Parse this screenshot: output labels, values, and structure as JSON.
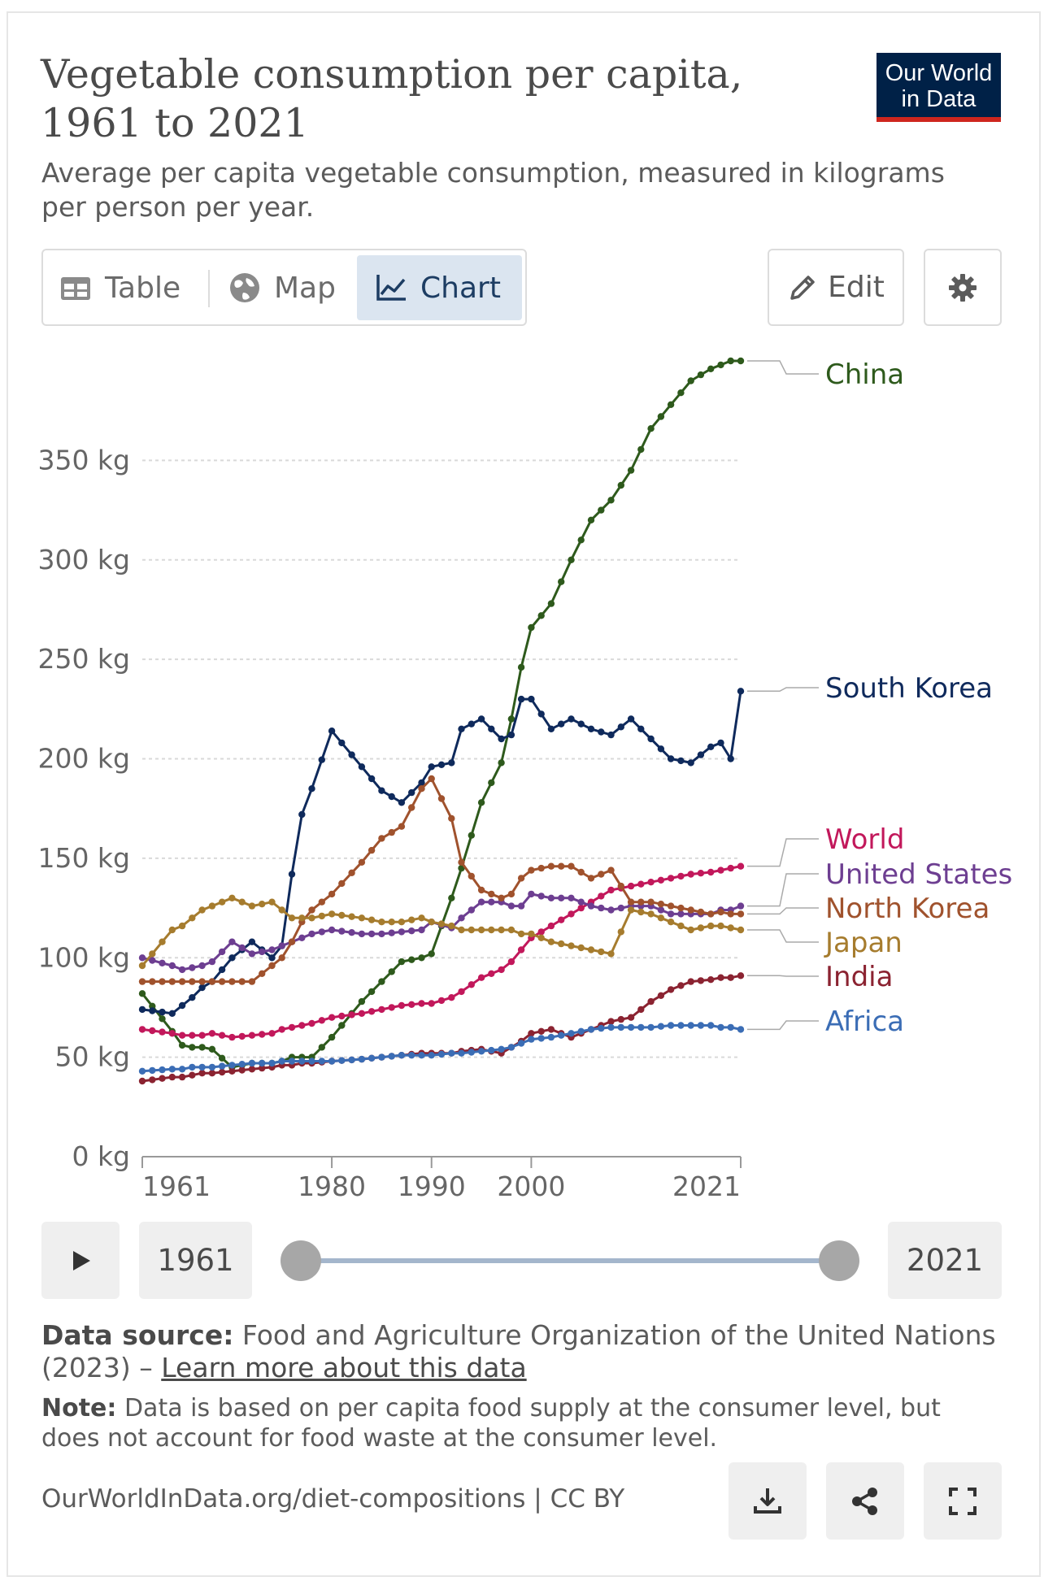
{
  "header": {
    "title": "Vegetable consumption per capita, 1961 to 2021",
    "subtitle": "Average per capita vegetable consumption, measured in kilograms per person per year.",
    "logo_line1": "Our World",
    "logo_line2": "in Data"
  },
  "tabs": [
    {
      "label": "Table",
      "icon": "table-icon"
    },
    {
      "label": "Map",
      "icon": "globe-icon"
    },
    {
      "label": "Chart",
      "icon": "line-chart-icon",
      "active": true
    }
  ],
  "toolbar": {
    "edit_label": "Edit",
    "settings_icon": "gear-icon"
  },
  "timeline": {
    "start_year": "1961",
    "end_year": "2021",
    "play_icon": "play-icon"
  },
  "footer": {
    "source_label": "Data source:",
    "source_text": "Food and Agriculture Organization of the United Nations (2023) –",
    "source_link": "Learn more about this data",
    "note_label": "Note:",
    "note_text": "Data is based on per capita food supply at the consumer level, but does not account for food waste at the consumer level.",
    "url": "OurWorldInData.org/diet-compositions | CC BY",
    "buttons": [
      "download-icon",
      "share-icon",
      "fullscreen-icon"
    ]
  },
  "chart_data": {
    "type": "line",
    "title": "Vegetable consumption per capita, 1961 to 2021",
    "xlim": [
      1961,
      2021
    ],
    "ylim": [
      0,
      400
    ],
    "yticks": [
      0,
      50,
      100,
      150,
      200,
      250,
      300,
      350
    ],
    "ytick_labels": [
      "0 kg",
      "50 kg",
      "100 kg",
      "150 kg",
      "200 kg",
      "250 kg",
      "300 kg",
      "350 kg"
    ],
    "xticks": [
      1961,
      1980,
      1990,
      2000,
      2021
    ],
    "xtick_labels": [
      "1961",
      "1980",
      "1990",
      "2000",
      "2021"
    ],
    "grid": "horizontal dashed",
    "legend": "right (line-end labels)",
    "keypoints": [
      1961,
      1964,
      1965,
      1966,
      1967,
      1968,
      1970,
      1972,
      1974,
      1975,
      1976,
      1977,
      1978,
      1980,
      1983,
      1985,
      1987,
      1989,
      1990,
      1992,
      1993,
      1995,
      1997,
      1998,
      1999,
      2000,
      2002,
      2004,
      2006,
      2008,
      2010,
      2012,
      2014,
      2016,
      2018,
      2019,
      2020,
      2021
    ],
    "series": [
      {
        "name": "China",
        "color": "#2e5a1c",
        "values": [
          82,
          63,
          56,
          55,
          55,
          54,
          45,
          47,
          47,
          48,
          50,
          50,
          50,
          60,
          78,
          88,
          98,
          100,
          102,
          130,
          145,
          178,
          198,
          220,
          246,
          266,
          278,
          300,
          320,
          330,
          345,
          366,
          378,
          390,
          396,
          398,
          400,
          400
        ]
      },
      {
        "name": "South Korea",
        "color": "#0f2a5c",
        "values": [
          74,
          72,
          76,
          80,
          85,
          88,
          100,
          108,
          100,
          106,
          142,
          172,
          185,
          214,
          196,
          184,
          178,
          188,
          196,
          198,
          215,
          220,
          210,
          212,
          230,
          230,
          215,
          220,
          215,
          212,
          220,
          210,
          200,
          198,
          206,
          208,
          200,
          234
        ]
      },
      {
        "name": "World",
        "color": "#c2185b",
        "values": [
          64,
          62,
          61,
          61,
          61,
          62,
          60,
          61,
          62,
          64,
          65,
          66,
          67,
          70,
          72,
          74,
          76,
          77,
          77,
          80,
          83,
          90,
          94,
          98,
          104,
          110,
          116,
          122,
          128,
          134,
          136,
          138,
          140,
          142,
          143,
          144,
          145,
          146
        ]
      },
      {
        "name": "United States",
        "color": "#6d3e91",
        "values": [
          100,
          96,
          94,
          95,
          96,
          98,
          108,
          102,
          104,
          106,
          108,
          110,
          112,
          114,
          112,
          112,
          113,
          114,
          118,
          115,
          120,
          128,
          128,
          126,
          126,
          132,
          130,
          130,
          126,
          124,
          126,
          126,
          122,
          122,
          122,
          124,
          124,
          126
        ]
      },
      {
        "name": "North Korea",
        "color": "#a0522d",
        "values": [
          88,
          88,
          88,
          88,
          88,
          88,
          88,
          88,
          96,
          100,
          108,
          118,
          124,
          132,
          148,
          160,
          166,
          185,
          190,
          170,
          148,
          134,
          130,
          132,
          140,
          144,
          146,
          146,
          140,
          144,
          128,
          128,
          126,
          124,
          122,
          123,
          122,
          122
        ]
      },
      {
        "name": "Japan",
        "color": "#a67c2e",
        "values": [
          96,
          114,
          116,
          120,
          124,
          126,
          130,
          126,
          128,
          124,
          120,
          120,
          120,
          122,
          120,
          118,
          118,
          120,
          118,
          116,
          114,
          114,
          114,
          114,
          112,
          112,
          108,
          106,
          104,
          102,
          124,
          122,
          118,
          114,
          116,
          116,
          115,
          114
        ]
      },
      {
        "name": "India",
        "color": "#8b2331",
        "values": [
          38,
          40,
          40,
          41,
          42,
          42,
          43,
          44,
          45,
          46,
          46,
          47,
          47,
          48,
          49,
          50,
          51,
          52,
          52,
          52,
          53,
          54,
          52,
          55,
          58,
          62,
          64,
          60,
          64,
          68,
          70,
          78,
          84,
          88,
          89,
          90,
          90,
          91
        ]
      },
      {
        "name": "Africa",
        "color": "#3b6db5",
        "values": [
          43,
          44,
          44,
          45,
          45,
          45,
          46,
          47,
          47,
          48,
          48,
          48,
          48,
          48,
          49,
          50,
          51,
          51,
          51,
          52,
          52,
          53,
          54,
          55,
          57,
          59,
          60,
          62,
          64,
          65,
          65,
          65,
          66,
          66,
          66,
          65,
          65,
          64
        ]
      }
    ]
  }
}
